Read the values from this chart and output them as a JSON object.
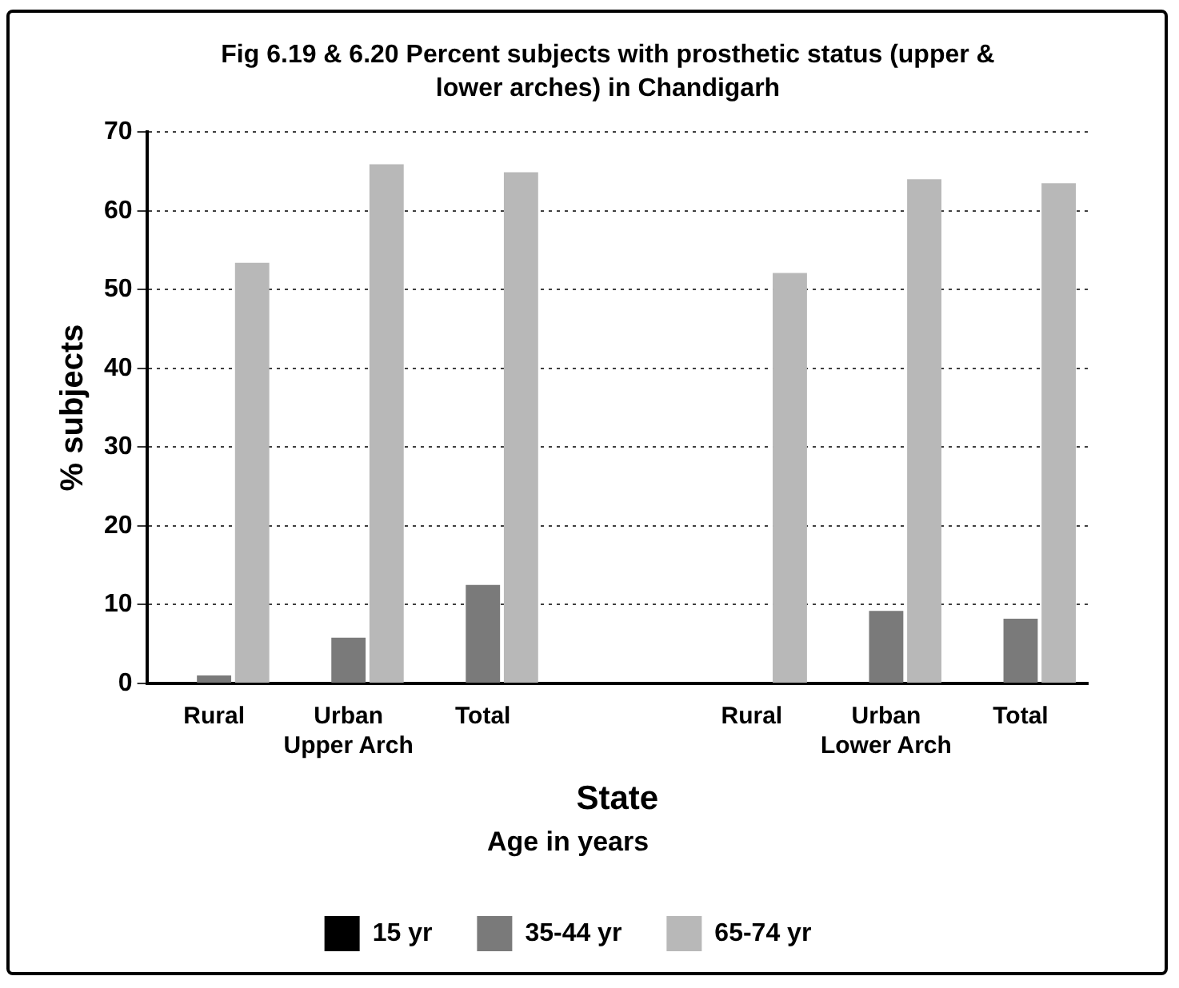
{
  "chart_data": {
    "type": "bar",
    "title": "Fig 6.19 & 6.20 Percent subjects with prosthetic status (upper & lower arches) in Chandigarh",
    "categories": [
      "Rural",
      "Urban",
      "Total",
      null,
      "Rural",
      "Urban",
      "Total"
    ],
    "series": [
      {
        "name": "15 yr",
        "color": "#000000",
        "values": [
          0,
          0,
          0,
          null,
          0,
          0,
          0
        ]
      },
      {
        "name": "35-44 yr",
        "color": "#7a7a7a",
        "values": [
          1,
          5.8,
          12.5,
          null,
          0,
          9.2,
          8.2
        ]
      },
      {
        "name": "65-74 yr",
        "color": "#b8b8b8",
        "values": [
          53.4,
          65.9,
          64.9,
          null,
          52.1,
          64,
          63.5
        ]
      }
    ],
    "xlabel": "State",
    "ylabel": "% subjects",
    "legend_title": "Age in years",
    "annotations": [
      "Upper Arch",
      "Lower Arch"
    ],
    "ylim": [
      0,
      70
    ],
    "yticks": [
      0,
      10,
      20,
      30,
      40,
      50,
      60,
      70
    ],
    "grid": "y",
    "legend": "bottom"
  }
}
